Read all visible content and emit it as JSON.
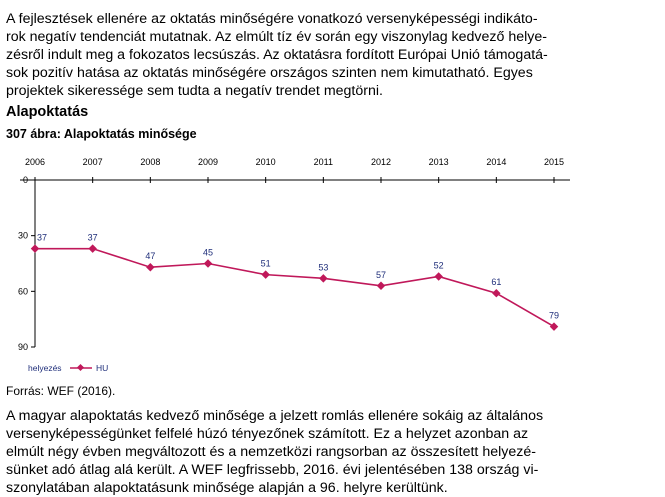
{
  "intro_paragraph": [
    "A fejlesztések ellenére az oktatás minőségére vonatkozó versenyképességi indikáto-",
    "rok negatív tendenciát mutatnak. Az elmúlt tíz év során egy viszonylag kedvező helye-",
    "zésről indult meg a fokozatos lecsúszás. Az oktatásra fordított Európai Unió támogatá-",
    "sok pozitív hatása az oktatás minőségére országos szinten nem kimutatható. Egyes",
    "projektek sikeressége sem tudta a negatív trendet megtörni."
  ],
  "section_heading": "Alapoktatás",
  "figure_title": "307 ábra: Alapoktatás minősége",
  "source": "Forrás: WEF (2016).",
  "closing_paragraph": [
    "A magyar alapoktatás kedvező minősége a jelzett romlás ellenére sokáig az általános",
    "versenyképességünket felfelé húzó tényezőnek számított. Ez a helyzet azonban az",
    "elmúlt négy évben megváltozott és a nemzetközi rangsorban az összesített helyezé-",
    "sünket adó átlag alá került. A WEF legfrissebb, 2016. évi jelentésében 138 ország vi-",
    "szonylatában alapoktatásunk minősége alapján a 96. helyre kerültünk."
  ],
  "chart_data": {
    "type": "line",
    "x": [
      "2006",
      "2007",
      "2008",
      "2009",
      "2010",
      "2011",
      "2012",
      "2013",
      "2014",
      "2015"
    ],
    "series": [
      {
        "name": "HU",
        "values": [
          37,
          37,
          47,
          45,
          51,
          53,
          57,
          52,
          61,
          79
        ],
        "color": "#c0185a"
      }
    ],
    "y_axis_label": "helyezés",
    "y_ticks": [
      0,
      30,
      60,
      90
    ],
    "ylim": [
      0,
      90
    ],
    "y_inverted": true,
    "x_axis_position": "top",
    "grid": false,
    "data_label_color": "#1f2e7a",
    "legend": {
      "placement": "bottom-left",
      "entries": [
        "helyezés",
        "HU"
      ]
    }
  }
}
